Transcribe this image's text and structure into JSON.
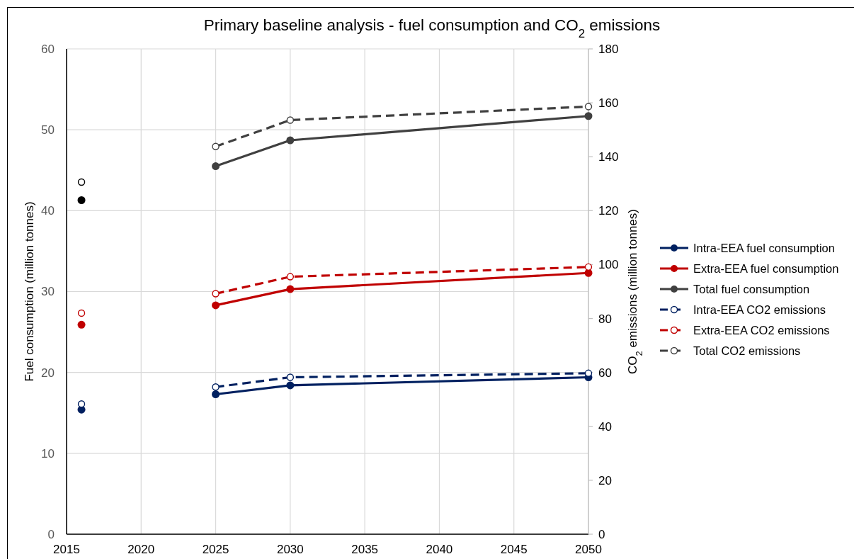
{
  "chart_data": {
    "type": "line",
    "title": "Primary baseline analysis - fuel consumption and CO$_{2}$ emissions",
    "ylabel": "Fuel consumption (million tonnes)",
    "y2label": "CO$_{2}$ emissions (million tonnes)",
    "x": [
      2016,
      2020,
      2025,
      2030,
      2050
    ],
    "xlim": [
      2015,
      2050
    ],
    "xticks": [
      2015,
      2020,
      2025,
      2030,
      2035,
      2040,
      2045,
      2050
    ],
    "ylim": [
      0,
      60
    ],
    "yticks": [
      0,
      10,
      20,
      30,
      40,
      50,
      60
    ],
    "y2lim": [
      0,
      180
    ],
    "y2ticks": [
      0,
      20,
      40,
      60,
      80,
      100,
      120,
      140,
      160,
      180
    ],
    "grid": true,
    "legend": "right",
    "marker": "circle",
    "series": [
      {
        "name": "Intra-EEA fuel consumption",
        "color": "#002060",
        "line_style": "solid",
        "values": [
          15.4,
          null,
          17.3,
          18.4,
          19.4
        ]
      },
      {
        "name": "Extra-EEA fuel consumption",
        "color": "#c00000",
        "line_style": "solid",
        "values": [
          25.9,
          null,
          28.3,
          30.3,
          32.3
        ]
      },
      {
        "name": "Total fuel consumption",
        "color": "#404040",
        "colors": [
          "#000000",
          null,
          "#404040",
          "#404040",
          "#404040"
        ],
        "line_style": "solid",
        "values": [
          41.3,
          null,
          45.5,
          48.7,
          51.7
        ]
      },
      {
        "name": "Intra-EEA CO2 emissions",
        "color": "#002060",
        "line_style": "dashed",
        "axis": "y2",
        "values": [
          48.3,
          null,
          54.6,
          58.2,
          59.7
        ]
      },
      {
        "name": "Extra-EEA CO2 emissions",
        "color": "#c00000",
        "line_style": "dashed",
        "axis": "y2",
        "values": [
          82.0,
          null,
          89.2,
          95.5,
          99.1
        ]
      },
      {
        "name": "Total CO2 emissions",
        "color": "#404040",
        "colors": [
          "#000000",
          null,
          "#404040",
          "#404040",
          "#404040"
        ],
        "line_style": "dashed",
        "axis": "y2",
        "values": [
          130.6,
          null,
          143.8,
          153.6,
          158.6
        ]
      }
    ]
  }
}
